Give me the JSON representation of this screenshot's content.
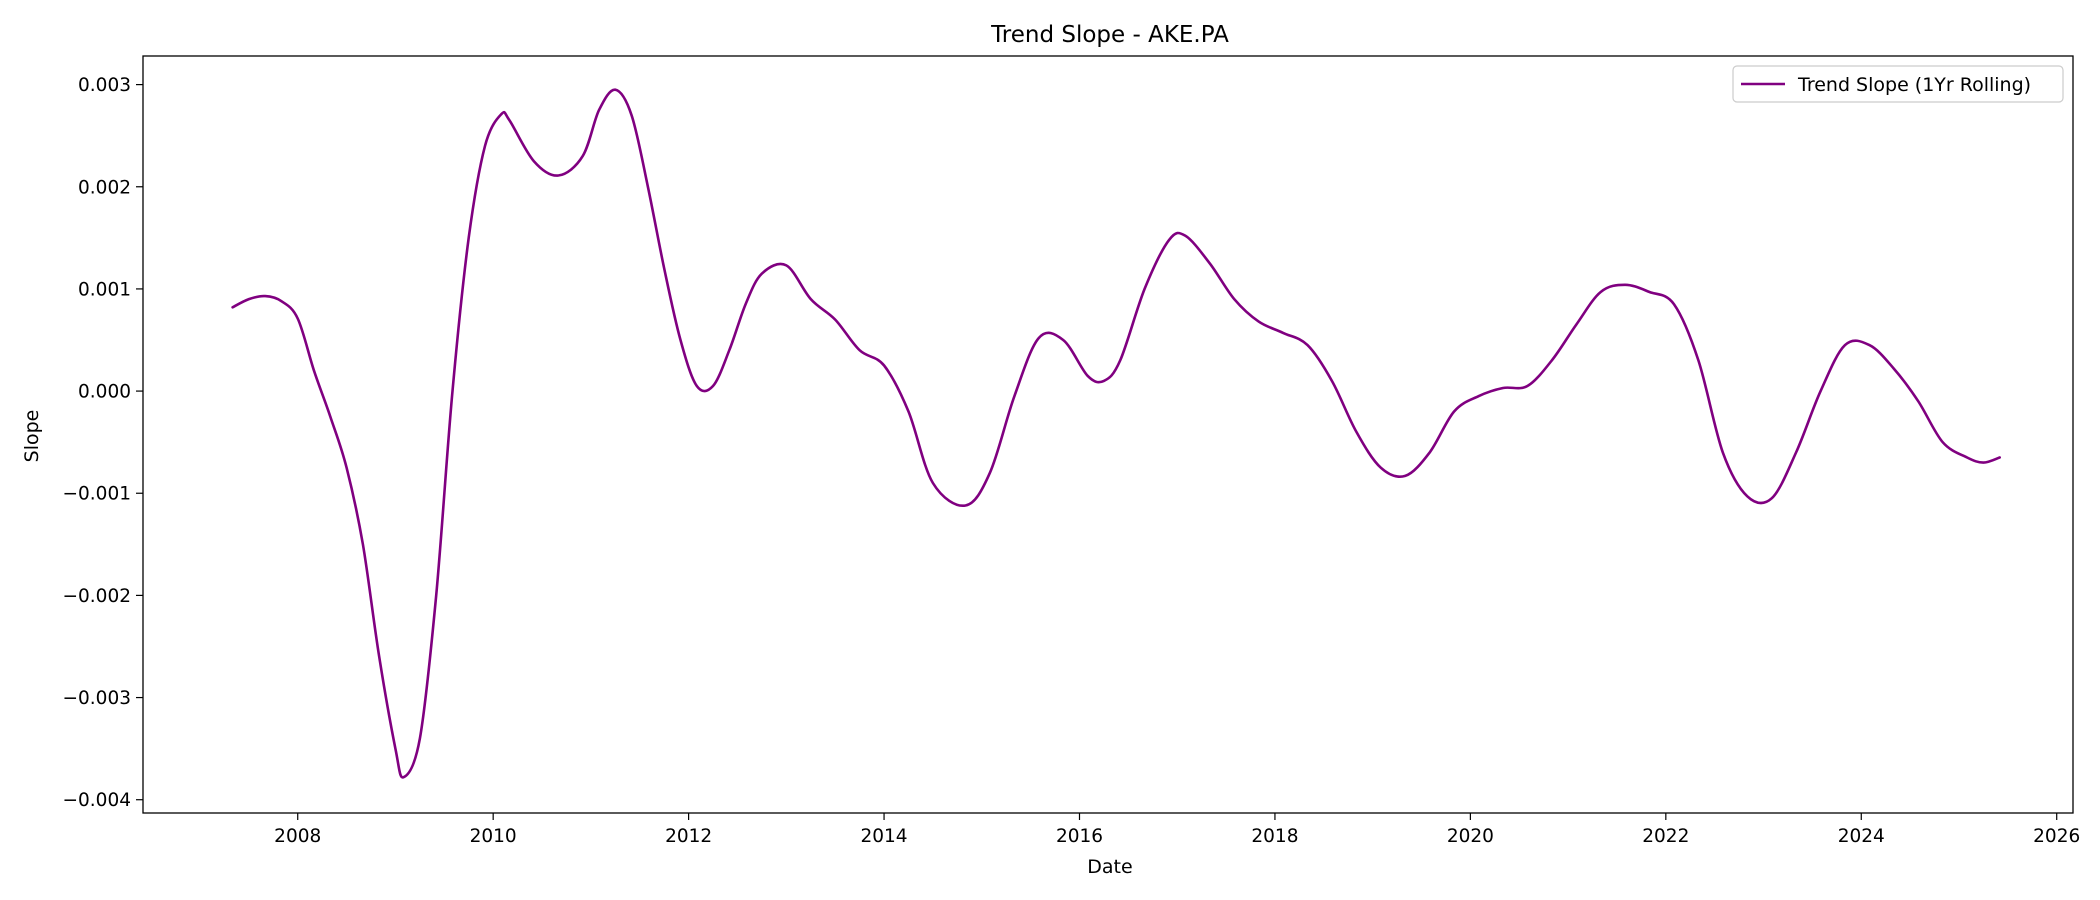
{
  "chart_data": {
    "type": "line",
    "title": "Trend Slope - AKE.PA",
    "xlabel": "Date",
    "ylabel": "Slope",
    "xlim": [
      "2006-06-01",
      "2026-03-01"
    ],
    "ylim": [
      -0.00413,
      0.00328
    ],
    "x_ticks": [
      "2008",
      "2010",
      "2012",
      "2014",
      "2016",
      "2018",
      "2020",
      "2022",
      "2024",
      "2026"
    ],
    "y_ticks": [
      "0.003",
      "0.002",
      "0.001",
      "0.000",
      "−0.001",
      "−0.002",
      "−0.003",
      "−0.004"
    ],
    "y_tick_values": [
      0.003,
      0.002,
      0.001,
      0.0,
      -0.001,
      -0.002,
      -0.003,
      -0.004
    ],
    "grid": false,
    "legend_position": "top-right",
    "series": [
      {
        "name": "Trend Slope (1Yr Rolling)",
        "color": "#800080",
        "x": [
          "2007-05-01",
          "2007-07-01",
          "2007-09-01",
          "2007-11-01",
          "2008-01-01",
          "2008-03-01",
          "2008-05-01",
          "2008-07-01",
          "2008-09-01",
          "2008-11-01",
          "2009-01-01",
          "2009-02-01",
          "2009-04-01",
          "2009-06-01",
          "2009-08-01",
          "2009-10-01",
          "2009-12-01",
          "2010-02-01",
          "2010-03-01",
          "2010-06-01",
          "2010-09-01",
          "2010-12-01",
          "2011-02-01",
          "2011-04-01",
          "2011-06-01",
          "2011-08-01",
          "2011-10-01",
          "2011-12-01",
          "2012-02-01",
          "2012-04-01",
          "2012-06-01",
          "2012-08-01",
          "2012-10-01",
          "2013-01-01",
          "2013-04-01",
          "2013-07-01",
          "2013-10-01",
          "2014-01-01",
          "2014-04-01",
          "2014-07-01",
          "2014-11-01",
          "2015-02-01",
          "2015-05-01",
          "2015-08-01",
          "2015-11-01",
          "2016-02-01",
          "2016-04-01",
          "2016-06-01",
          "2016-09-01",
          "2016-12-01",
          "2017-02-01",
          "2017-05-01",
          "2017-08-01",
          "2017-11-01",
          "2018-02-01",
          "2018-05-01",
          "2018-08-01",
          "2018-11-01",
          "2019-02-01",
          "2019-05-01",
          "2019-08-01",
          "2019-11-01",
          "2020-02-01",
          "2020-05-01",
          "2020-08-01",
          "2020-11-01",
          "2021-02-01",
          "2021-05-01",
          "2021-08-01",
          "2021-11-01",
          "2022-02-01",
          "2022-05-01",
          "2022-08-01",
          "2022-11-01",
          "2023-02-01",
          "2023-05-01",
          "2023-08-01",
          "2023-11-01",
          "2024-02-01",
          "2024-05-01",
          "2024-08-01",
          "2024-11-01",
          "2025-02-01",
          "2025-04-01",
          "2025-06-01"
        ],
        "values": [
          0.00082,
          0.0009,
          0.00093,
          0.00088,
          0.00071,
          0.0002,
          -0.00025,
          -0.00075,
          -0.0015,
          -0.0026,
          -0.0035,
          -0.00378,
          -0.0034,
          -0.002,
          0.0,
          0.0015,
          0.0024,
          0.00271,
          0.00265,
          0.00225,
          0.00211,
          0.0023,
          0.00275,
          0.00295,
          0.0027,
          0.002,
          0.0012,
          0.0005,
          5e-05,
          5e-05,
          0.0004,
          0.00085,
          0.00115,
          0.00123,
          0.0009,
          0.0007,
          0.0004,
          0.00025,
          -0.0002,
          -0.0009,
          -0.00112,
          -0.0008,
          -5e-05,
          0.00052,
          0.0005,
          0.00015,
          0.0001,
          0.0003,
          0.001,
          0.00148,
          0.00152,
          0.00125,
          0.0009,
          0.00068,
          0.00057,
          0.00045,
          0.0001,
          -0.0004,
          -0.00075,
          -0.00083,
          -0.0006,
          -0.0002,
          -5e-05,
          3e-05,
          5e-05,
          0.0003,
          0.00065,
          0.00097,
          0.00104,
          0.00097,
          0.00085,
          0.0003,
          -0.0006,
          -0.00103,
          -0.00105,
          -0.0006,
          0.0,
          0.00045,
          0.00045,
          0.00022,
          -0.0001,
          -0.0005,
          -0.00065,
          -0.0007,
          -0.00065
        ]
      }
    ]
  }
}
